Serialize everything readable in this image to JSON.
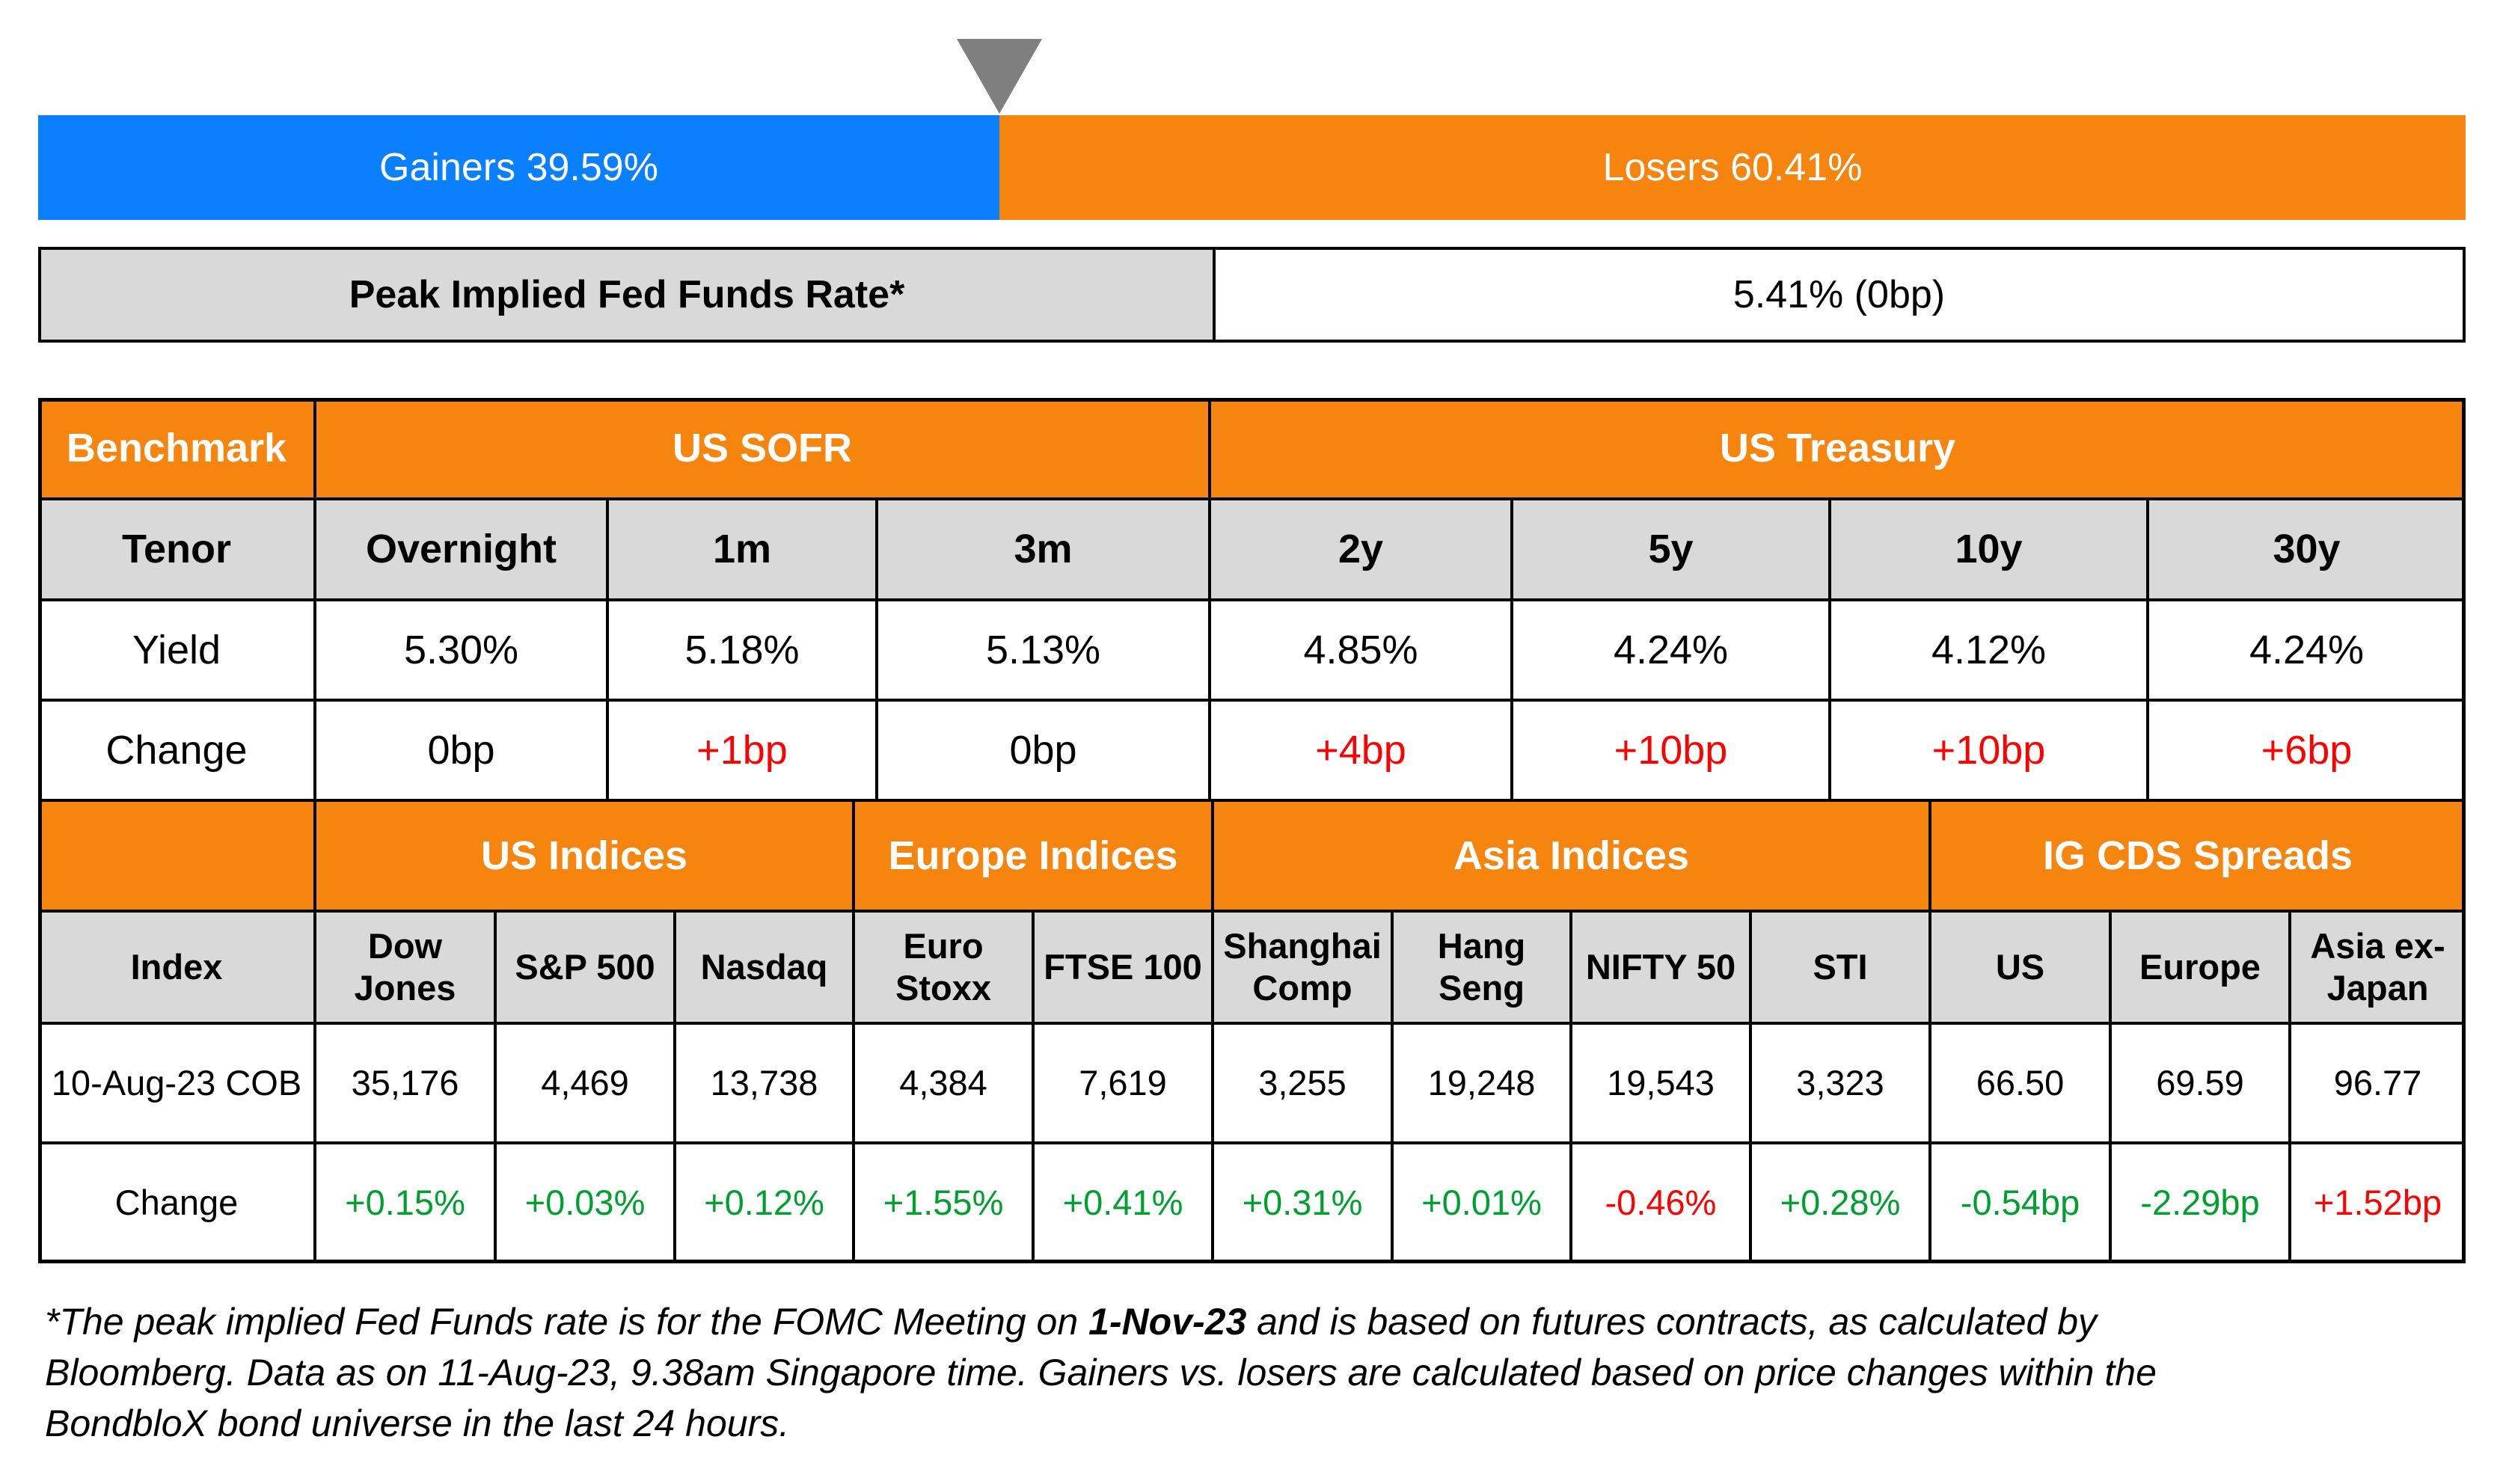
{
  "market_breadth": {
    "gainers_label": "Gainers 39.59%",
    "losers_label": "Losers 60.41%",
    "gainers_fraction": 0.3959,
    "colors": {
      "gainers": "#0a80ff",
      "losers": "#f5850f",
      "pointer": "#7f7f7f"
    },
    "pointer_icon": "triangle-down-icon"
  },
  "peak_rate": {
    "label": "Peak Implied Fed Funds Rate*",
    "value": "5.41% (0bp)"
  },
  "rates": {
    "benchmark_label": "Benchmark",
    "group_sofr": "US SOFR",
    "group_treasury": "US Treasury",
    "tenor_label": "Tenor",
    "yield_label": "Yield",
    "change_label": "Change",
    "tenors": [
      "Overnight",
      "1m",
      "3m",
      "2y",
      "5y",
      "10y",
      "30y"
    ],
    "yields": [
      "5.30%",
      "5.18%",
      "5.13%",
      "4.85%",
      "4.24%",
      "4.12%",
      "4.24%"
    ],
    "changes": [
      "0bp",
      "+1bp",
      "0bp",
      "+4bp",
      "+10bp",
      "+10bp",
      "+6bp"
    ]
  },
  "indices": {
    "group_us": "US Indices",
    "group_europe": "Europe Indices",
    "group_asia": "Asia Indices",
    "group_cds": "IG CDS Spreads",
    "index_label": "Index",
    "date_label": "10-Aug-23 COB",
    "change_label": "Change",
    "names": [
      [
        "Dow",
        "Jones"
      ],
      [
        "S&P 500"
      ],
      [
        "Nasdaq"
      ],
      [
        "Euro",
        "Stoxx"
      ],
      [
        "FTSE 100"
      ],
      [
        "Shanghai",
        "Comp"
      ],
      [
        "Hang",
        "Seng"
      ],
      [
        "NIFTY 50"
      ],
      [
        "STI"
      ],
      [
        "US"
      ],
      [
        "Europe"
      ],
      [
        "Asia ex-",
        "Japan"
      ]
    ],
    "values": [
      "35,176",
      "4,469",
      "13,738",
      "4,384",
      "7,619",
      "3,255",
      "19,248",
      "19,543",
      "3,323",
      "66.50",
      "69.59",
      "96.77"
    ],
    "changes": [
      "+0.15%",
      "+0.03%",
      "+0.12%",
      "+1.55%",
      "+0.41%",
      "+0.31%",
      "+0.01%",
      "-0.46%",
      "+0.28%",
      "-0.54bp",
      "-2.29bp",
      "+1.52bp"
    ],
    "change_colors": [
      "green",
      "green",
      "green",
      "green",
      "green",
      "green",
      "green",
      "red",
      "green",
      "green",
      "green",
      "red"
    ]
  },
  "footnote": {
    "prefix": "*The peak implied Fed Funds rate is for the FOMC Meeting on ",
    "date_bold": "1-Nov-23",
    "line1_rest": " and is based on futures contracts, as calculated by",
    "line2": "Bloomberg. Data as on 11-Aug-23, 9.38am Singapore time. Gainers vs. losers are calculated based on price changes within the",
    "line3": "BondbloX bond universe in the last 24 hours."
  }
}
